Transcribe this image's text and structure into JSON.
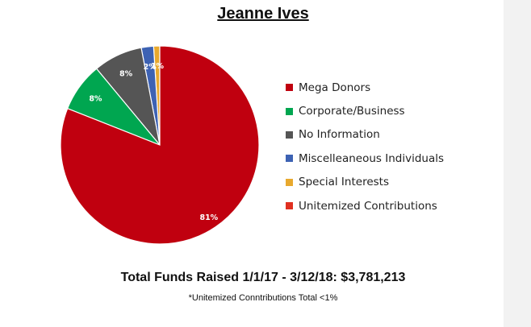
{
  "chart_data": {
    "type": "pie",
    "title": "Jeanne Ives",
    "slices": [
      {
        "label": "Mega Donors",
        "value": 81,
        "data_label": "81%",
        "color": "#c0000f"
      },
      {
        "label": "Corporate/Business",
        "value": 8,
        "data_label": "8%",
        "color": "#00a650"
      },
      {
        "label": "No Information",
        "value": 8,
        "data_label": "8%",
        "color": "#555555"
      },
      {
        "label": "Miscelleaneous Individuals",
        "value": 2,
        "data_label": "2%",
        "color": "#3d62b3"
      },
      {
        "label": "Special Interests",
        "value": 1,
        "data_label": "1%",
        "color": "#e8a92e"
      },
      {
        "label": "Unitemized Contributions",
        "value": 0,
        "data_label": "",
        "color": "#e03020"
      }
    ],
    "legend_position": "right"
  },
  "footer": {
    "total": "Total Funds Raised 1/1/17 - 3/12/18: $3,781,213",
    "note": "*Unitemized Conntributions Total <1%"
  }
}
